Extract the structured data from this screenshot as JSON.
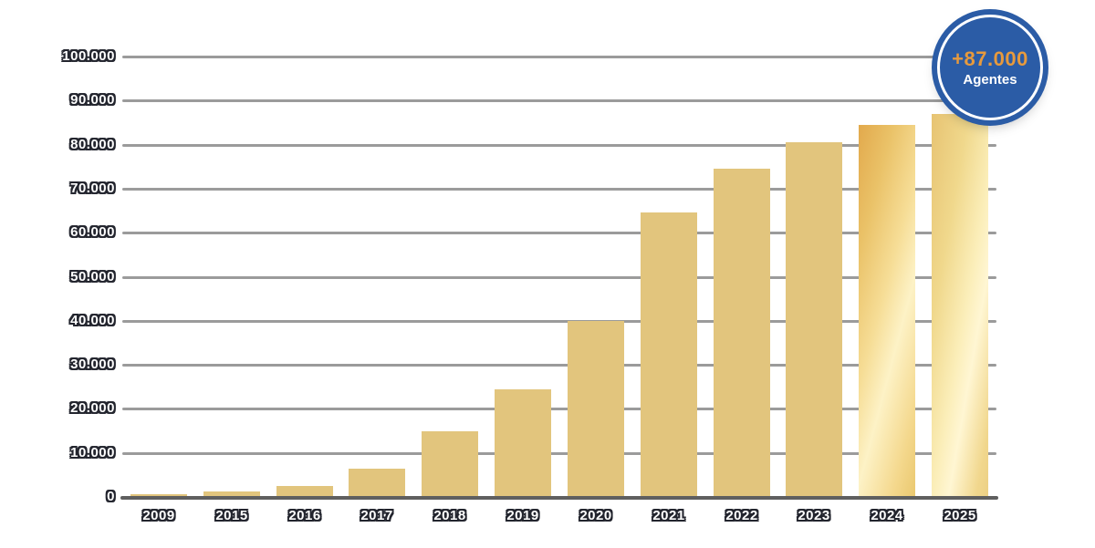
{
  "chart_data": {
    "type": "bar",
    "title": "",
    "xlabel": "",
    "ylabel": "",
    "categories": [
      "2009",
      "2015",
      "2016",
      "2017",
      "2018",
      "2019",
      "2020",
      "2021",
      "2022",
      "2023",
      "2024",
      "2025"
    ],
    "values": [
      600,
      1300,
      2500,
      6500,
      15000,
      24500,
      40000,
      64500,
      74500,
      80500,
      84500,
      87000
    ],
    "ylim": [
      0,
      100000
    ],
    "yticks": [
      {
        "value": 0,
        "label": "0"
      },
      {
        "value": 10000,
        "label": "10.000"
      },
      {
        "value": 20000,
        "label": "20.000"
      },
      {
        "value": 30000,
        "label": "30.000"
      },
      {
        "value": 40000,
        "label": "40.000"
      },
      {
        "value": 50000,
        "label": "50.000"
      },
      {
        "value": 60000,
        "label": "60.000"
      },
      {
        "value": 70000,
        "label": "70.000"
      },
      {
        "value": 80000,
        "label": "80.000"
      },
      {
        "value": 90000,
        "label": "90.000"
      },
      {
        "value": 100000,
        "label": "100.000"
      }
    ],
    "grid": true,
    "legend": false,
    "bar_styles": [
      "flat",
      "flat",
      "flat",
      "flat",
      "flat",
      "flat",
      "flat",
      "flat",
      "flat",
      "flat",
      "shine-a",
      "shine-b"
    ]
  },
  "badge": {
    "value": "+87.000",
    "label": "Agentes"
  },
  "colors": {
    "bar": "#E2C57D",
    "grid": "#9B9B9B",
    "axis": "#5F5F5F",
    "label_fill": "#FFFFFF",
    "label_outline": "#23252E",
    "badge_bg": "#2B5CA6",
    "badge_ring": "#FFFFFF",
    "badge_value": "#E79A3D",
    "badge_label": "#FFFFFF",
    "shine_dark": "#E2A94C",
    "shine_light": "#FFF6D3"
  }
}
